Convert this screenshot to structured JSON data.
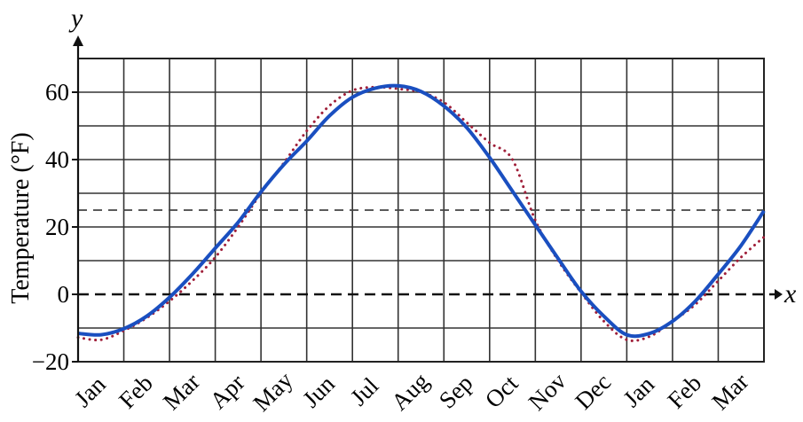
{
  "chart_data": {
    "type": "line",
    "title": "",
    "xlabel": "x",
    "ylabel": "Temperature (°F)",
    "y_axis_var": "y",
    "categories": [
      "Jan",
      "Feb",
      "Mar",
      "Apr",
      "May",
      "Jun",
      "Jul",
      "Aug",
      "Sep",
      "Oct",
      "Nov",
      "Dec",
      "Jan",
      "Feb",
      "Mar"
    ],
    "y_ticks": [
      60,
      40,
      20,
      0,
      -20
    ],
    "y_tick_labels": [
      "60",
      "40",
      "20",
      "0",
      "−20"
    ],
    "ylim": [
      -20,
      70
    ],
    "x_range_months": [
      0,
      15
    ],
    "grid": true,
    "dashed_reference_lines": [
      25,
      0
    ],
    "series": [
      {
        "style": "solid",
        "color": "#1a4fc0",
        "x": [
          0,
          0.5,
          1,
          1.5,
          2,
          2.5,
          3,
          3.5,
          4,
          4.5,
          5,
          5.5,
          6,
          6.5,
          7,
          7.5,
          8,
          8.5,
          9,
          9.5,
          10,
          10.5,
          11,
          11.5,
          12,
          12.5,
          13,
          13.5,
          14,
          14.5,
          15
        ],
        "values": [
          -11.6,
          -12.0,
          -10.2,
          -6.5,
          -0.9,
          6.0,
          13.7,
          21.4,
          30.4,
          38.5,
          45.5,
          53.0,
          58.5,
          61.2,
          61.9,
          60.2,
          55.9,
          49.5,
          40.6,
          30.6,
          20.6,
          10.6,
          0.9,
          -6.5,
          -12.0,
          -11.6,
          -8.0,
          -2.0,
          6.0,
          14.5,
          24.8
        ]
      },
      {
        "style": "dotted",
        "color": "#a0203a",
        "x": [
          0,
          0.5,
          1,
          1.5,
          2,
          2.5,
          3,
          3.5,
          4,
          4.5,
          5,
          5.5,
          6,
          6.5,
          7,
          7.5,
          8,
          8.5,
          9,
          9.5,
          10,
          10.5,
          11,
          11.5,
          12,
          12.5,
          13,
          13.5,
          14,
          14.5,
          15
        ],
        "values": [
          -12.8,
          -13.5,
          -10.8,
          -7.0,
          -2.0,
          4.0,
          11.0,
          20.0,
          30.0,
          39.0,
          48.5,
          56.0,
          60.5,
          61.5,
          61.0,
          60.0,
          57.0,
          51.0,
          45.0,
          40.0,
          22.0,
          10.0,
          0.5,
          -8.0,
          -13.5,
          -12.5,
          -8.0,
          -3.0,
          4.0,
          11.0,
          17.0
        ]
      }
    ]
  }
}
